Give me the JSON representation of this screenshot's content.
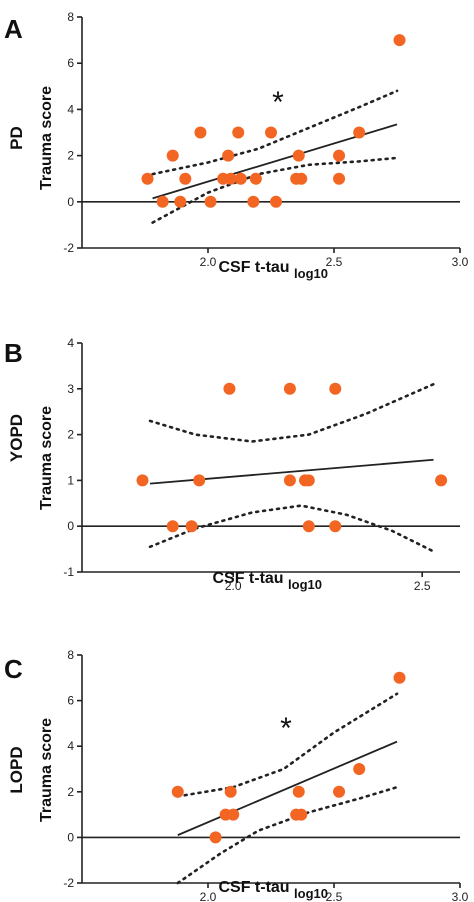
{
  "chart_data": [
    {
      "type": "scatter",
      "panel_letter": "A",
      "group_label": "PD",
      "ylabel": "Trauma score",
      "xlabel": "CSF t-tau",
      "xlabel_sub": "log10",
      "significance": "*",
      "xlim": [
        1.5,
        3.0
      ],
      "ylim": [
        -2,
        8
      ],
      "xticks": [
        2.0,
        2.5,
        3.0
      ],
      "xtick_labels": [
        "2.0",
        "2.5",
        "3.0"
      ],
      "yticks": [
        -2,
        0,
        2,
        4,
        6,
        8
      ],
      "ytick_labels": [
        "-2",
        "0",
        "2",
        "4",
        "6",
        "8"
      ],
      "points": [
        {
          "x": 1.76,
          "y": 1
        },
        {
          "x": 1.82,
          "y": 0
        },
        {
          "x": 1.86,
          "y": 2
        },
        {
          "x": 1.89,
          "y": 0
        },
        {
          "x": 1.91,
          "y": 1
        },
        {
          "x": 1.97,
          "y": 3
        },
        {
          "x": 2.01,
          "y": 0
        },
        {
          "x": 2.06,
          "y": 1
        },
        {
          "x": 2.08,
          "y": 2
        },
        {
          "x": 2.09,
          "y": 1
        },
        {
          "x": 2.12,
          "y": 3
        },
        {
          "x": 2.13,
          "y": 1
        },
        {
          "x": 2.18,
          "y": 0
        },
        {
          "x": 2.19,
          "y": 1
        },
        {
          "x": 2.25,
          "y": 3
        },
        {
          "x": 2.27,
          "y": 0
        },
        {
          "x": 2.35,
          "y": 1
        },
        {
          "x": 2.36,
          "y": 2
        },
        {
          "x": 2.37,
          "y": 1
        },
        {
          "x": 2.52,
          "y": 2
        },
        {
          "x": 2.52,
          "y": 1
        },
        {
          "x": 2.6,
          "y": 3
        },
        {
          "x": 2.76,
          "y": 7
        }
      ],
      "fit": [
        {
          "x": 1.78,
          "y": 0.15
        },
        {
          "x": 2.75,
          "y": 3.35
        }
      ],
      "ci_upper": [
        {
          "x": 1.78,
          "y": 1.2
        },
        {
          "x": 2.0,
          "y": 1.7
        },
        {
          "x": 2.2,
          "y": 2.3
        },
        {
          "x": 2.4,
          "y": 3.2
        },
        {
          "x": 2.6,
          "y": 4.1
        },
        {
          "x": 2.75,
          "y": 4.8
        }
      ],
      "ci_lower": [
        {
          "x": 1.78,
          "y": -0.9
        },
        {
          "x": 2.0,
          "y": 0.4
        },
        {
          "x": 2.2,
          "y": 1.2
        },
        {
          "x": 2.4,
          "y": 1.6
        },
        {
          "x": 2.6,
          "y": 1.75
        },
        {
          "x": 2.75,
          "y": 1.9
        }
      ]
    },
    {
      "type": "scatter",
      "panel_letter": "B",
      "group_label": "YOPD",
      "ylabel": "Trauma score",
      "xlabel": "CSF t-tau",
      "xlabel_sub": "log10",
      "significance": "",
      "xlim": [
        1.6,
        2.6
      ],
      "ylim": [
        -1,
        4
      ],
      "xticks": [
        2.0,
        2.5
      ],
      "xtick_labels": [
        "2.0",
        "2.5"
      ],
      "yticks": [
        -1,
        0,
        1,
        2,
        3,
        4
      ],
      "ytick_labels": [
        "-1",
        "0",
        "1",
        "2",
        "3",
        "4"
      ],
      "points": [
        {
          "x": 1.76,
          "y": 1
        },
        {
          "x": 1.84,
          "y": 0
        },
        {
          "x": 1.89,
          "y": 0
        },
        {
          "x": 1.91,
          "y": 1
        },
        {
          "x": 1.99,
          "y": 3
        },
        {
          "x": 2.15,
          "y": 3
        },
        {
          "x": 2.15,
          "y": 1
        },
        {
          "x": 2.19,
          "y": 1
        },
        {
          "x": 2.2,
          "y": 1
        },
        {
          "x": 2.2,
          "y": 0
        },
        {
          "x": 2.27,
          "y": 3
        },
        {
          "x": 2.27,
          "y": 0
        },
        {
          "x": 2.55,
          "y": 1
        }
      ],
      "fit": [
        {
          "x": 1.78,
          "y": 0.93
        },
        {
          "x": 2.53,
          "y": 1.45
        }
      ],
      "ci_upper": [
        {
          "x": 1.78,
          "y": 2.3
        },
        {
          "x": 1.9,
          "y": 2.0
        },
        {
          "x": 2.05,
          "y": 1.85
        },
        {
          "x": 2.2,
          "y": 2.0
        },
        {
          "x": 2.35,
          "y": 2.45
        },
        {
          "x": 2.53,
          "y": 3.1
        }
      ],
      "ci_lower": [
        {
          "x": 1.78,
          "y": -0.45
        },
        {
          "x": 1.9,
          "y": -0.05
        },
        {
          "x": 2.05,
          "y": 0.3
        },
        {
          "x": 2.18,
          "y": 0.45
        },
        {
          "x": 2.3,
          "y": 0.25
        },
        {
          "x": 2.42,
          "y": -0.1
        },
        {
          "x": 2.53,
          "y": -0.55
        }
      ]
    },
    {
      "type": "scatter",
      "panel_letter": "C",
      "group_label": "LOPD",
      "ylabel": "Trauma score",
      "xlabel": "CSF t-tau",
      "xlabel_sub": "log10",
      "significance": "*",
      "xlim": [
        1.5,
        3.0
      ],
      "ylim": [
        -2,
        8
      ],
      "xticks": [
        2.0,
        2.5,
        3.0
      ],
      "xtick_labels": [
        "2.0",
        "2.5",
        "3.0"
      ],
      "yticks": [
        -2,
        0,
        2,
        4,
        6,
        8
      ],
      "ytick_labels": [
        "-2",
        "0",
        "2",
        "4",
        "6",
        "8"
      ],
      "points": [
        {
          "x": 1.88,
          "y": 2
        },
        {
          "x": 2.03,
          "y": 0
        },
        {
          "x": 2.07,
          "y": 1
        },
        {
          "x": 2.09,
          "y": 2
        },
        {
          "x": 2.1,
          "y": 1
        },
        {
          "x": 2.35,
          "y": 1
        },
        {
          "x": 2.36,
          "y": 2
        },
        {
          "x": 2.37,
          "y": 1
        },
        {
          "x": 2.52,
          "y": 2
        },
        {
          "x": 2.6,
          "y": 3
        },
        {
          "x": 2.76,
          "y": 7
        }
      ],
      "fit": [
        {
          "x": 1.88,
          "y": 0.1
        },
        {
          "x": 2.75,
          "y": 4.2
        }
      ],
      "ci_upper": [
        {
          "x": 1.88,
          "y": 1.8
        },
        {
          "x": 2.1,
          "y": 2.2
        },
        {
          "x": 2.3,
          "y": 3.0
        },
        {
          "x": 2.5,
          "y": 4.6
        },
        {
          "x": 2.75,
          "y": 6.3
        }
      ],
      "ci_lower": [
        {
          "x": 1.88,
          "y": -2.0
        },
        {
          "x": 2.05,
          "y": -0.7
        },
        {
          "x": 2.2,
          "y": 0.3
        },
        {
          "x": 2.4,
          "y": 1.1
        },
        {
          "x": 2.6,
          "y": 1.7
        },
        {
          "x": 2.75,
          "y": 2.2
        }
      ]
    }
  ],
  "colors": {
    "point": "#f26522",
    "line": "#222222"
  }
}
